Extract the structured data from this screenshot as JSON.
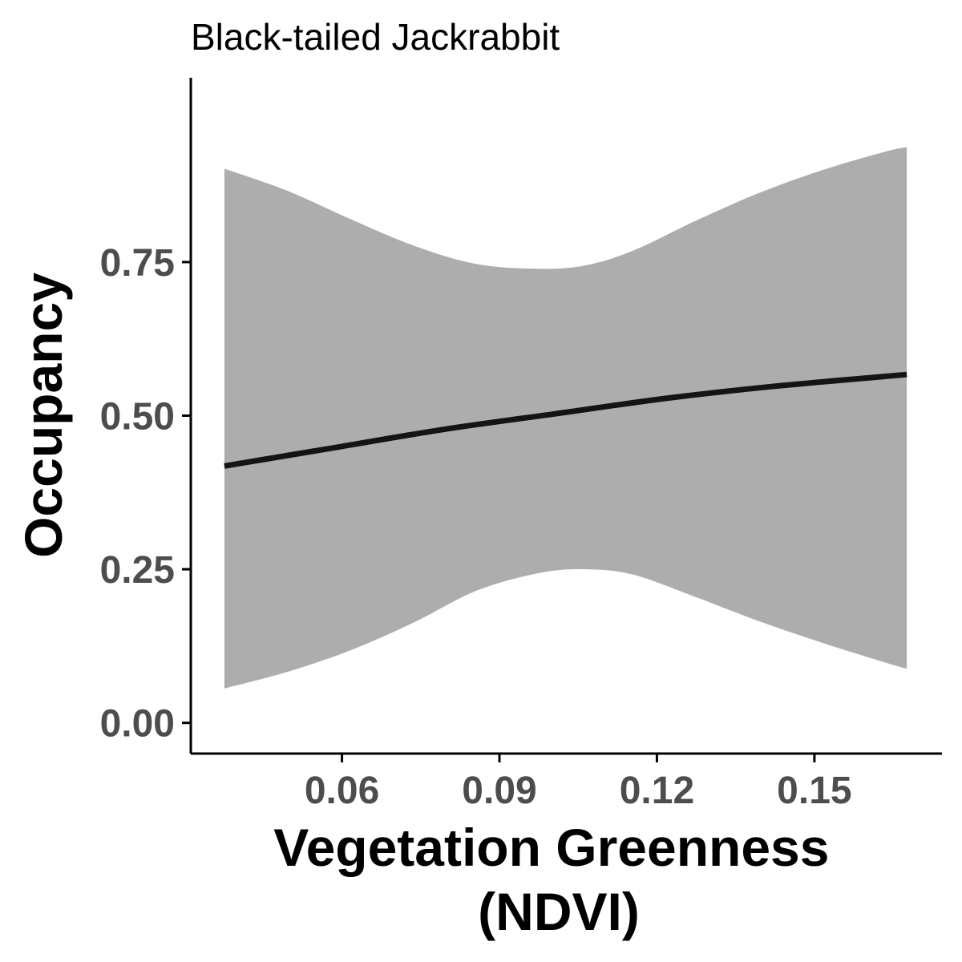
{
  "chart_data": {
    "type": "line",
    "title": "Black-tailed Jackrabbit",
    "xlabel_lines": [
      "Vegetation Greenness",
      "(NDVI)"
    ],
    "ylabel": "Occupancy",
    "xlim": [
      0.0312,
      0.1743
    ],
    "ylim": [
      -0.05,
      1.05
    ],
    "x_ticks": [
      0.06,
      0.09,
      0.12,
      0.15
    ],
    "x_tick_labels": [
      "0.06",
      "0.09",
      "0.12",
      "0.15"
    ],
    "y_ticks": [
      0.0,
      0.25,
      0.5,
      0.75
    ],
    "y_tick_labels": [
      "0.00",
      "0.25",
      "0.50",
      "0.75"
    ],
    "grid": false,
    "series": [
      {
        "x": [
          0.0376,
          0.0586,
          0.0796,
          0.1006,
          0.1216,
          0.1426,
          0.1676
        ],
        "y": [
          0.418,
          0.448,
          0.478,
          0.503,
          0.528,
          0.548,
          0.567
        ]
      }
    ],
    "ribbon": {
      "x": [
        0.0376,
        0.0496,
        0.0616,
        0.0736,
        0.0856,
        0.0976,
        0.1066,
        0.1156,
        0.1276,
        0.1396,
        0.1516,
        0.1636,
        0.1676
      ],
      "upper": [
        0.902,
        0.866,
        0.82,
        0.777,
        0.747,
        0.739,
        0.745,
        0.769,
        0.818,
        0.863,
        0.9,
        0.93,
        0.937
      ],
      "lower": [
        0.056,
        0.083,
        0.118,
        0.163,
        0.215,
        0.244,
        0.25,
        0.241,
        0.204,
        0.165,
        0.13,
        0.098,
        0.088
      ]
    },
    "colors": {
      "line": "#141414",
      "ribbon": "#adadad",
      "axis": "#000000",
      "tick_label": "#4d4d4d"
    }
  }
}
